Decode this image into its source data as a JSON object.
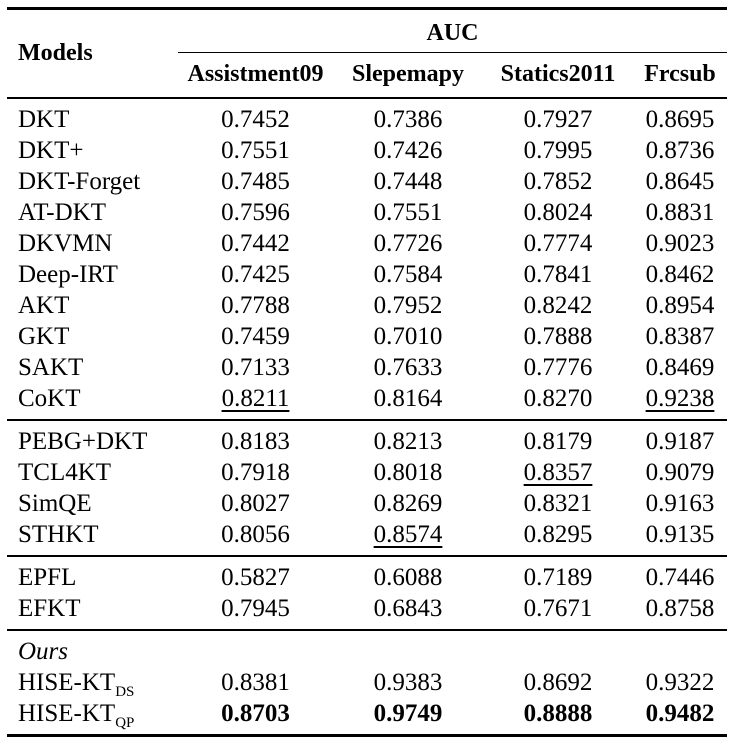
{
  "page": {
    "background_color": "#ffffff",
    "text_color": "#000000"
  },
  "table": {
    "header": {
      "models_label": "Models",
      "metric_label": "AUC",
      "datasets": [
        "Assistment09",
        "Slepemapy",
        "Statics2011",
        "Frcsub"
      ]
    },
    "style_legend": {
      "underline_means": "second-best result",
      "bold_means": "best result"
    },
    "groups": [
      {
        "label": null,
        "rows": [
          {
            "model": "DKT",
            "values": [
              "0.7452",
              "0.7386",
              "0.7927",
              "0.8695"
            ]
          },
          {
            "model": "DKT+",
            "values": [
              "0.7551",
              "0.7426",
              "0.7995",
              "0.8736"
            ]
          },
          {
            "model": "DKT-Forget",
            "values": [
              "0.7485",
              "0.7448",
              "0.7852",
              "0.8645"
            ]
          },
          {
            "model": "AT-DKT",
            "values": [
              "0.7596",
              "0.7551",
              "0.8024",
              "0.8831"
            ]
          },
          {
            "model": "DKVMN",
            "values": [
              "0.7442",
              "0.7726",
              "0.7774",
              "0.9023"
            ]
          },
          {
            "model": "Deep-IRT",
            "values": [
              "0.7425",
              "0.7584",
              "0.7841",
              "0.8462"
            ]
          },
          {
            "model": "AKT",
            "values": [
              "0.7788",
              "0.7952",
              "0.8242",
              "0.8954"
            ]
          },
          {
            "model": "GKT",
            "values": [
              "0.7459",
              "0.7010",
              "0.7888",
              "0.8387"
            ]
          },
          {
            "model": "SAKT",
            "values": [
              "0.7133",
              "0.7633",
              "0.7776",
              "0.8469"
            ]
          },
          {
            "model": "CoKT",
            "values": [
              "0.8211",
              "0.8164",
              "0.8270",
              "0.9238"
            ],
            "underline_cols": [
              0,
              3
            ]
          }
        ]
      },
      {
        "label": null,
        "rows": [
          {
            "model": "PEBG+DKT",
            "values": [
              "0.8183",
              "0.8213",
              "0.8179",
              "0.9187"
            ]
          },
          {
            "model": "TCL4KT",
            "values": [
              "0.7918",
              "0.8018",
              "0.8357",
              "0.9079"
            ],
            "underline_cols": [
              2
            ]
          },
          {
            "model": "SimQE",
            "values": [
              "0.8027",
              "0.8269",
              "0.8321",
              "0.9163"
            ]
          },
          {
            "model": "STHKT",
            "values": [
              "0.8056",
              "0.8574",
              "0.8295",
              "0.9135"
            ],
            "underline_cols": [
              1
            ]
          }
        ]
      },
      {
        "label": null,
        "rows": [
          {
            "model": "EPFL",
            "values": [
              "0.5827",
              "0.6088",
              "0.7189",
              "0.7446"
            ]
          },
          {
            "model": "EFKT",
            "values": [
              "0.7945",
              "0.6843",
              "0.7671",
              "0.8758"
            ]
          }
        ]
      },
      {
        "label": "Ours",
        "rows": [
          {
            "model": "HISE-KT",
            "model_sub": "DS",
            "values": [
              "0.8381",
              "0.9383",
              "0.8692",
              "0.9322"
            ]
          },
          {
            "model": "HISE-KT",
            "model_sub": "QP",
            "values": [
              "0.8703",
              "0.9749",
              "0.8888",
              "0.9482"
            ],
            "bold": true
          }
        ]
      }
    ]
  }
}
